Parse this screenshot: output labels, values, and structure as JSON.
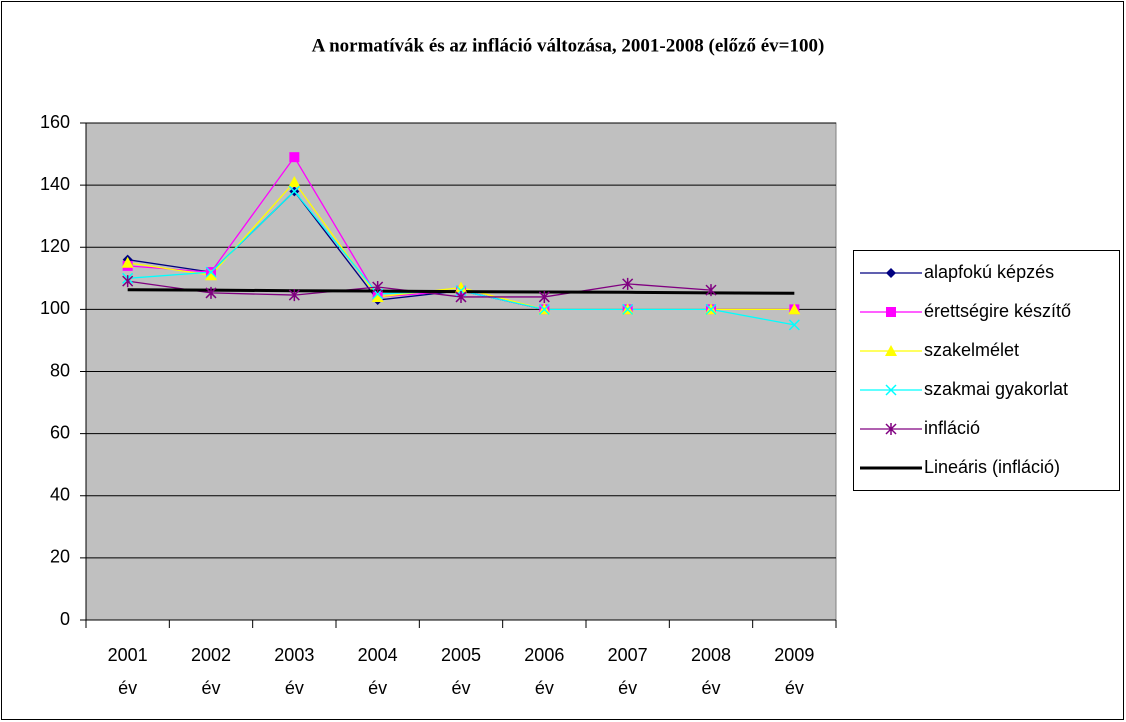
{
  "chart_data": {
    "type": "line",
    "title": "A normatívák és az infláció változása, 2001-2008 (előző év=100)",
    "categories": [
      "2001 év",
      "2002 év",
      "2003 év",
      "2004 év",
      "2005 év",
      "2006 év",
      "2007 év",
      "2008 év",
      "2009 év"
    ],
    "series": [
      {
        "name": "alapfokú képzés",
        "color": "#000080",
        "marker": "diamond",
        "values": [
          116,
          112,
          138,
          103,
          106,
          100,
          100,
          100,
          100
        ]
      },
      {
        "name": "érettségire készítő",
        "color": "#FF00FF",
        "marker": "square",
        "values": [
          114,
          112,
          149,
          104,
          106,
          100,
          100,
          100,
          100
        ]
      },
      {
        "name": "szakelmélet",
        "color": "#FFFF00",
        "marker": "triangle",
        "values": [
          115,
          111,
          141,
          104,
          107,
          100,
          100,
          100,
          100
        ]
      },
      {
        "name": "szakmai gyakorlat",
        "color": "#00FFFF",
        "marker": "x",
        "values": [
          110,
          112,
          138,
          105,
          106,
          100,
          100,
          100,
          95
        ]
      },
      {
        "name": "infláció",
        "color": "#800080",
        "marker": "star",
        "values": [
          109.1,
          105.3,
          104.6,
          107.2,
          104,
          104,
          108.2,
          106.2,
          null
        ]
      },
      {
        "name": "Lineáris (infláció)",
        "color": "#000000",
        "marker": "none",
        "width": 3,
        "values": [
          106.3,
          106.2,
          106,
          105.9,
          105.7,
          105.6,
          105.5,
          105.3,
          105.2
        ]
      }
    ],
    "ylim": [
      0,
      160
    ],
    "yticks": [
      0,
      20,
      40,
      60,
      80,
      100,
      120,
      140,
      160
    ],
    "grid": true,
    "legend": "right"
  }
}
